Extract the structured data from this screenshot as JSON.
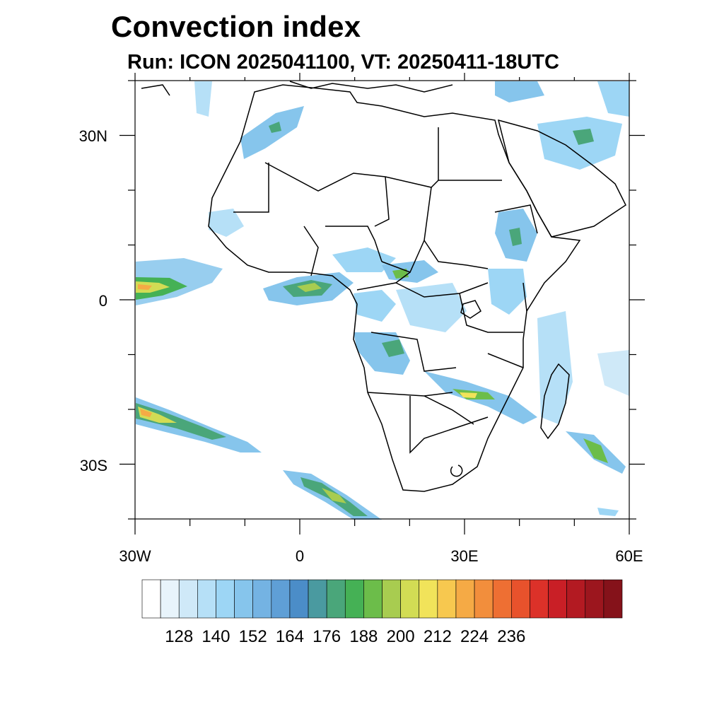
{
  "title": "Convection index",
  "subtitle": "Run: ICON 2025041100,  VT: 20250411-18UTC",
  "map": {
    "lon_range": [
      -30,
      60
    ],
    "lat_range": [
      -40,
      40
    ],
    "y_tick_labels": [
      "30N",
      "0",
      "30S"
    ],
    "x_tick_labels": [
      "30W",
      "0",
      "30E",
      "60E"
    ]
  },
  "colorbar": {
    "colors": [
      "#ffffff",
      "#e8f4fb",
      "#cfe9f8",
      "#b6e0f7",
      "#9dd6f5",
      "#86c5ec",
      "#74b3e3",
      "#5f9fd6",
      "#4b8dc8",
      "#4a9aa0",
      "#4aa67a",
      "#45b155",
      "#6cbd4a",
      "#a8cc50",
      "#d2dc54",
      "#f1e35a",
      "#f7c84f",
      "#f5aa45",
      "#f28e3c",
      "#ee6f33",
      "#e8522c",
      "#dc3129",
      "#c91f26",
      "#b31a22",
      "#9c161e",
      "#85121a"
    ],
    "labels": [
      "128",
      "140",
      "152",
      "164",
      "176",
      "188",
      "200",
      "212",
      "224",
      "236"
    ]
  }
}
